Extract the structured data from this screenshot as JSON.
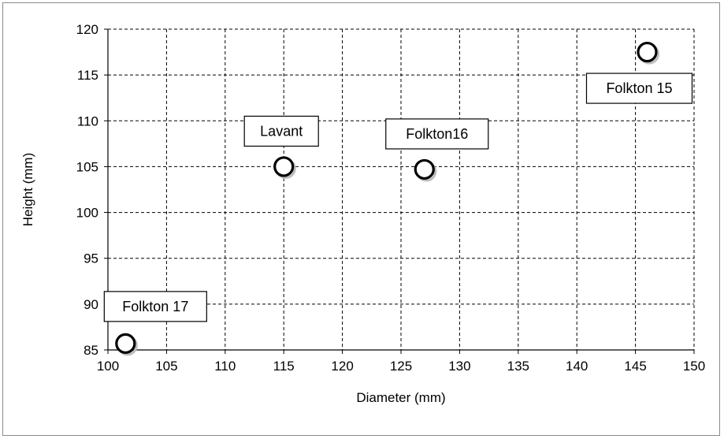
{
  "chart_data": {
    "type": "scatter",
    "title": "",
    "xlabel": "Diameter (mm)",
    "ylabel": "Height (mm)",
    "xlim": [
      100,
      150
    ],
    "ylim": [
      85,
      120
    ],
    "xticks": [
      100,
      105,
      110,
      115,
      120,
      125,
      130,
      135,
      140,
      145,
      150
    ],
    "yticks": [
      85,
      90,
      95,
      100,
      105,
      110,
      115,
      120
    ],
    "grid": true,
    "legend": "none",
    "marker": "open-circle",
    "marker_color": "#000000",
    "points": [
      {
        "label": "Folkton 17",
        "x": 101.5,
        "y": 85.7
      },
      {
        "label": "Lavant",
        "x": 115,
        "y": 105
      },
      {
        "label": "Folkton16",
        "x": 127,
        "y": 104.7
      },
      {
        "label": "Folkton 15",
        "x": 146,
        "y": 117.5
      }
    ]
  }
}
